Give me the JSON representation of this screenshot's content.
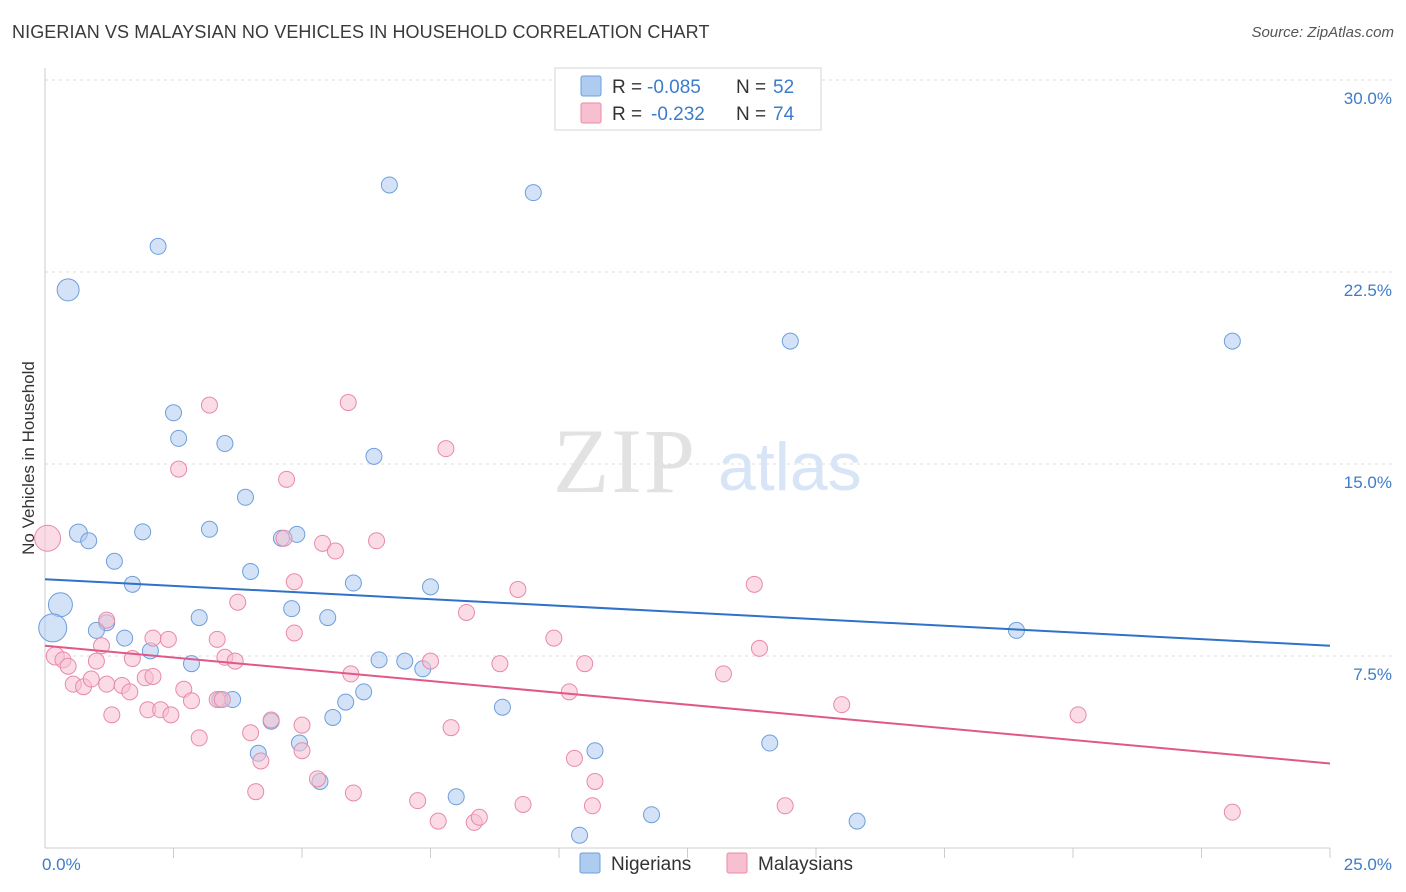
{
  "title": "NIGERIAN VS MALAYSIAN NO VEHICLES IN HOUSEHOLD CORRELATION CHART",
  "source": "Source: ZipAtlas.com",
  "watermark": {
    "zip": "ZIP",
    "atlas": "atlas"
  },
  "legend_top": [
    {
      "r_label": "R =",
      "r_value": "-0.085",
      "n_label": "N =",
      "n_value": "52",
      "color": "#aecbf0",
      "stroke": "#6e9fdc"
    },
    {
      "r_label": "R =",
      "r_value": "-0.232",
      "n_label": "N =",
      "n_value": "74",
      "color": "#f7c0d1",
      "stroke": "#e88aa6"
    }
  ],
  "legend_bottom": [
    {
      "label": "Nigerians",
      "color": "#aecbf0",
      "stroke": "#6e9fdc"
    },
    {
      "label": "Malaysians",
      "color": "#f7c0d1",
      "stroke": "#e88aa6"
    }
  ],
  "chart_data": {
    "type": "scatter",
    "xlabel": "",
    "ylabel": "No Vehicles in Household",
    "xlim": [
      0,
      25
    ],
    "ylim": [
      0,
      30
    ],
    "x_tick_labels": [
      "0.0%",
      "25.0%"
    ],
    "y_ticks": [
      7.5,
      15.0,
      22.5,
      30.0
    ],
    "y_tick_labels": [
      "7.5%",
      "15.0%",
      "22.5%",
      "30.0%"
    ],
    "grid": true,
    "series": [
      {
        "name": "Nigerians",
        "color": "#aecbf0",
        "stroke": "#6e9fdc",
        "line_color": "#2f72c8",
        "trend": [
          [
            0,
            10.5
          ],
          [
            25,
            7.9
          ]
        ],
        "points": [
          [
            0.45,
            21.8,
            11
          ],
          [
            2.2,
            23.5,
            8
          ],
          [
            6.7,
            25.9,
            8
          ],
          [
            9.5,
            25.6,
            8
          ],
          [
            14.5,
            19.8,
            8
          ],
          [
            23.1,
            19.8,
            8
          ],
          [
            2.5,
            17.0,
            8
          ],
          [
            2.6,
            16.0,
            8
          ],
          [
            3.5,
            15.8,
            8
          ],
          [
            6.4,
            15.3,
            8
          ],
          [
            3.9,
            13.7,
            8
          ],
          [
            0.65,
            12.3,
            9
          ],
          [
            0.85,
            12.0,
            8
          ],
          [
            1.9,
            12.35,
            8
          ],
          [
            3.2,
            12.45,
            8
          ],
          [
            4.6,
            12.1,
            8
          ],
          [
            4.9,
            12.25,
            8
          ],
          [
            1.35,
            11.2,
            8
          ],
          [
            4.0,
            10.8,
            8
          ],
          [
            1.7,
            10.3,
            8
          ],
          [
            6.0,
            10.35,
            8
          ],
          [
            7.5,
            10.2,
            8
          ],
          [
            0.3,
            9.5,
            12
          ],
          [
            0.15,
            8.6,
            14
          ],
          [
            1.2,
            8.8,
            8
          ],
          [
            3.0,
            9.0,
            8
          ],
          [
            4.8,
            9.35,
            8
          ],
          [
            5.5,
            9.0,
            8
          ],
          [
            1.0,
            8.5,
            8
          ],
          [
            1.55,
            8.2,
            8
          ],
          [
            2.05,
            7.7,
            8
          ],
          [
            2.85,
            7.2,
            8
          ],
          [
            6.5,
            7.35,
            8
          ],
          [
            7.0,
            7.3,
            8
          ],
          [
            7.35,
            7.0,
            8
          ],
          [
            6.2,
            6.1,
            8
          ],
          [
            3.4,
            5.8,
            8
          ],
          [
            3.65,
            5.8,
            8
          ],
          [
            5.85,
            5.7,
            8
          ],
          [
            5.6,
            5.1,
            8
          ],
          [
            8.9,
            5.5,
            8
          ],
          [
            4.4,
            4.95,
            8
          ],
          [
            4.95,
            4.1,
            8
          ],
          [
            14.1,
            4.1,
            8
          ],
          [
            4.15,
            3.7,
            8
          ],
          [
            10.7,
            3.8,
            8
          ],
          [
            5.35,
            2.6,
            8
          ],
          [
            8.0,
            2.0,
            8
          ],
          [
            11.8,
            1.3,
            8
          ],
          [
            15.8,
            1.05,
            8
          ],
          [
            18.9,
            8.5,
            8
          ],
          [
            10.4,
            0.5,
            8
          ]
        ]
      },
      {
        "name": "Malaysians",
        "color": "#f7c0d1",
        "stroke": "#e88aa6",
        "line_color": "#e0588a",
        "trend": [
          [
            0,
            7.9
          ],
          [
            25,
            3.3
          ]
        ],
        "points": [
          [
            0.05,
            12.1,
            13
          ],
          [
            3.2,
            17.3,
            8
          ],
          [
            5.9,
            17.4,
            8
          ],
          [
            7.8,
            15.6,
            8
          ],
          [
            2.6,
            14.8,
            8
          ],
          [
            4.7,
            14.4,
            8
          ],
          [
            4.65,
            12.1,
            8
          ],
          [
            5.4,
            11.9,
            8
          ],
          [
            5.65,
            11.6,
            8
          ],
          [
            6.45,
            12.0,
            8
          ],
          [
            4.85,
            10.4,
            8
          ],
          [
            9.2,
            10.1,
            8
          ],
          [
            13.8,
            10.3,
            8
          ],
          [
            3.75,
            9.6,
            8
          ],
          [
            8.2,
            9.2,
            8
          ],
          [
            1.2,
            8.9,
            8
          ],
          [
            4.85,
            8.4,
            8
          ],
          [
            2.1,
            8.2,
            8
          ],
          [
            2.4,
            8.15,
            8
          ],
          [
            3.35,
            8.15,
            8
          ],
          [
            9.9,
            8.2,
            8
          ],
          [
            13.9,
            7.8,
            8
          ],
          [
            0.2,
            7.5,
            9
          ],
          [
            0.35,
            7.35,
            8
          ],
          [
            0.45,
            7.1,
            8
          ],
          [
            1.0,
            7.3,
            8
          ],
          [
            1.7,
            7.4,
            8
          ],
          [
            3.5,
            7.45,
            8
          ],
          [
            3.7,
            7.3,
            8
          ],
          [
            7.5,
            7.3,
            8
          ],
          [
            8.85,
            7.2,
            8
          ],
          [
            10.5,
            7.2,
            8
          ],
          [
            13.2,
            6.8,
            8
          ],
          [
            1.1,
            7.9,
            8
          ],
          [
            0.55,
            6.4,
            8
          ],
          [
            0.75,
            6.3,
            8
          ],
          [
            0.9,
            6.6,
            8
          ],
          [
            1.2,
            6.4,
            8
          ],
          [
            1.5,
            6.35,
            8
          ],
          [
            1.65,
            6.1,
            8
          ],
          [
            1.95,
            6.65,
            8
          ],
          [
            2.1,
            6.7,
            8
          ],
          [
            2.7,
            6.2,
            8
          ],
          [
            2.85,
            5.75,
            8
          ],
          [
            3.35,
            5.8,
            8
          ],
          [
            3.45,
            5.8,
            8
          ],
          [
            5.95,
            6.8,
            8
          ],
          [
            10.2,
            6.1,
            8
          ],
          [
            15.5,
            5.6,
            8
          ],
          [
            1.3,
            5.2,
            8
          ],
          [
            2.0,
            5.4,
            8
          ],
          [
            2.25,
            5.4,
            8
          ],
          [
            2.45,
            5.2,
            8
          ],
          [
            4.4,
            5.0,
            8
          ],
          [
            5.0,
            4.8,
            8
          ],
          [
            7.9,
            4.7,
            8
          ],
          [
            20.1,
            5.2,
            8
          ],
          [
            3.0,
            4.3,
            8
          ],
          [
            4.0,
            4.5,
            8
          ],
          [
            5.0,
            3.8,
            8
          ],
          [
            4.2,
            3.4,
            8
          ],
          [
            10.3,
            3.5,
            8
          ],
          [
            5.3,
            2.7,
            8
          ],
          [
            10.7,
            2.6,
            8
          ],
          [
            4.1,
            2.2,
            8
          ],
          [
            6.0,
            2.15,
            8
          ],
          [
            7.25,
            1.85,
            8
          ],
          [
            9.3,
            1.7,
            8
          ],
          [
            10.65,
            1.65,
            8
          ],
          [
            14.4,
            1.65,
            8
          ],
          [
            7.65,
            1.05,
            8
          ],
          [
            8.35,
            1.0,
            8
          ],
          [
            8.45,
            1.2,
            8
          ],
          [
            23.1,
            1.4,
            8
          ]
        ]
      }
    ]
  }
}
